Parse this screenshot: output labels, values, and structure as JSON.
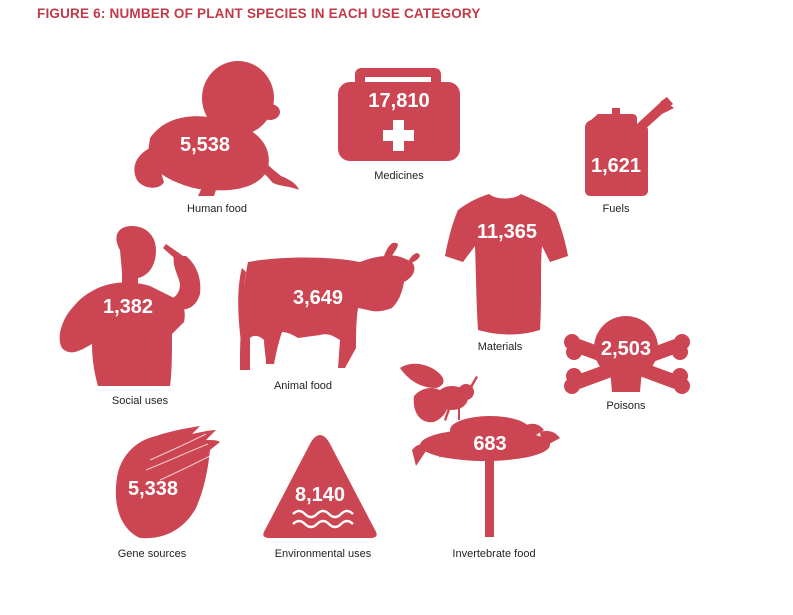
{
  "colors": {
    "accent": "#cc4552",
    "title": "#c23a48",
    "text": "#222222",
    "value": "#ffffff"
  },
  "chart_data": {
    "type": "pictograph",
    "title": "FIGURE 6: NUMBER OF PLANT SPECIES IN EACH USE CATEGORY",
    "categories": [
      "Human food",
      "Medicines",
      "Fuels",
      "Social uses",
      "Animal food",
      "Materials",
      "Poisons",
      "Gene sources",
      "Environmental uses",
      "Invertebrate food"
    ],
    "values": [
      5538,
      17810,
      1621,
      1382,
      3649,
      11365,
      2503,
      5338,
      8140,
      683
    ],
    "items": [
      {
        "label": "Human food",
        "value": 5538,
        "value_label": "5,538",
        "icon": "crawling-baby-icon"
      },
      {
        "label": "Medicines",
        "value": 17810,
        "value_label": "17,810",
        "icon": "first-aid-kit-icon"
      },
      {
        "label": "Fuels",
        "value": 1621,
        "value_label": "1,621",
        "icon": "jerry-can-icon"
      },
      {
        "label": "Social uses",
        "value": 1382,
        "value_label": "1,382",
        "icon": "smoking-man-icon"
      },
      {
        "label": "Animal food",
        "value": 3649,
        "value_label": "3,649",
        "icon": "cow-icon"
      },
      {
        "label": "Materials",
        "value": 11365,
        "value_label": "11,365",
        "icon": "t-shirt-icon"
      },
      {
        "label": "Poisons",
        "value": 2503,
        "value_label": "2,503",
        "icon": "skull-crossbones-icon"
      },
      {
        "label": "Gene sources",
        "value": 5338,
        "value_label": "5,338",
        "icon": "seed-icon"
      },
      {
        "label": "Environmental uses",
        "value": 8140,
        "value_label": "8,140",
        "icon": "warning-triangle-icon"
      },
      {
        "label": "Invertebrate food",
        "value": 683,
        "value_label": "683",
        "icon": "bee-flower-icon"
      }
    ]
  }
}
